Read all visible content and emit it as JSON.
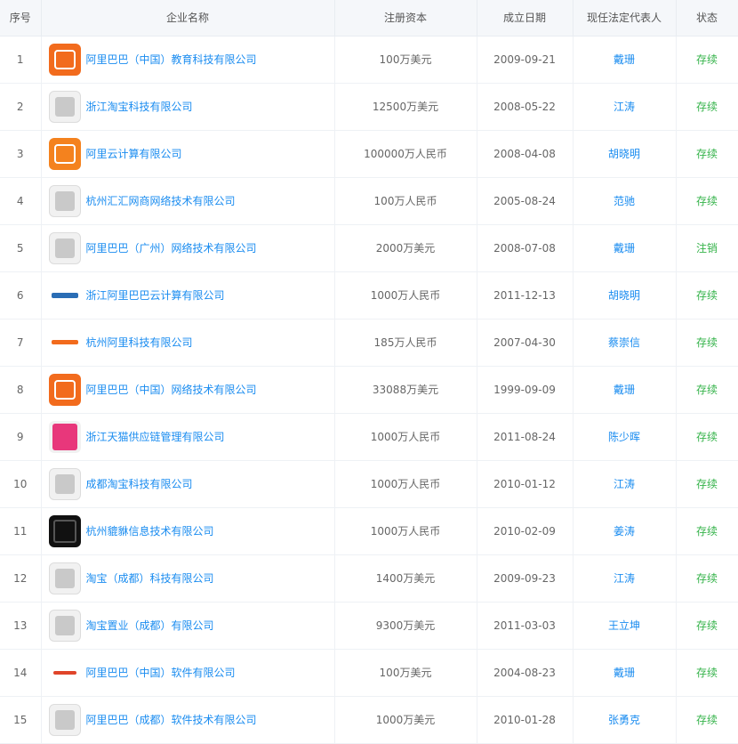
{
  "columns": {
    "index": "序号",
    "name": "企业名称",
    "capital": "注册资本",
    "date": "成立日期",
    "rep": "现任法定代表人",
    "status": "状态"
  },
  "rows": [
    {
      "index": "1",
      "logo": "orange",
      "name": "阿里巴巴（中国）教育科技有限公司",
      "capital": "100万美元",
      "date": "2009-09-21",
      "rep": "戴珊",
      "status": "存续"
    },
    {
      "index": "2",
      "logo": "grey",
      "name": "浙江淘宝科技有限公司",
      "capital": "12500万美元",
      "date": "2008-05-22",
      "rep": "江涛",
      "status": "存续"
    },
    {
      "index": "3",
      "logo": "orange2",
      "name": "阿里云计算有限公司",
      "capital": "100000万人民币",
      "date": "2008-04-08",
      "rep": "胡晓明",
      "status": "存续"
    },
    {
      "index": "4",
      "logo": "grey",
      "name": "杭州汇汇网商网络技术有限公司",
      "capital": "100万人民币",
      "date": "2005-08-24",
      "rep": "范驰",
      "status": "存续"
    },
    {
      "index": "5",
      "logo": "grey",
      "name": "阿里巴巴（广州）网络技术有限公司",
      "capital": "2000万美元",
      "date": "2008-07-08",
      "rep": "戴珊",
      "status": "注销"
    },
    {
      "index": "6",
      "logo": "blue-text",
      "name": "浙江阿里巴巴云计算有限公司",
      "capital": "1000万人民币",
      "date": "2011-12-13",
      "rep": "胡晓明",
      "status": "存续"
    },
    {
      "index": "7",
      "logo": "orange-text",
      "name": "杭州阿里科技有限公司",
      "capital": "185万人民币",
      "date": "2007-04-30",
      "rep": "蔡崇信",
      "status": "存续"
    },
    {
      "index": "8",
      "logo": "orange",
      "name": "阿里巴巴（中国）网络技术有限公司",
      "capital": "33088万美元",
      "date": "1999-09-09",
      "rep": "戴珊",
      "status": "存续"
    },
    {
      "index": "9",
      "logo": "pink",
      "name": "浙江天猫供应链管理有限公司",
      "capital": "1000万人民币",
      "date": "2011-08-24",
      "rep": "陈少晖",
      "status": "存续"
    },
    {
      "index": "10",
      "logo": "grey",
      "name": "成都淘宝科技有限公司",
      "capital": "1000万人民币",
      "date": "2010-01-12",
      "rep": "江涛",
      "status": "存续"
    },
    {
      "index": "11",
      "logo": "black",
      "name": "杭州貔貅信息技术有限公司",
      "capital": "1000万人民币",
      "date": "2010-02-09",
      "rep": "姜涛",
      "status": "存续"
    },
    {
      "index": "12",
      "logo": "grey",
      "name": "淘宝（成都）科技有限公司",
      "capital": "1400万美元",
      "date": "2009-09-23",
      "rep": "江涛",
      "status": "存续"
    },
    {
      "index": "13",
      "logo": "grey",
      "name": "淘宝置业（成都）有限公司",
      "capital": "9300万美元",
      "date": "2011-03-03",
      "rep": "王立坤",
      "status": "存续"
    },
    {
      "index": "14",
      "logo": "red-text",
      "name": "阿里巴巴（中国）软件有限公司",
      "capital": "100万美元",
      "date": "2004-08-23",
      "rep": "戴珊",
      "status": "存续"
    },
    {
      "index": "15",
      "logo": "grey",
      "name": "阿里巴巴（成都）软件技术有限公司",
      "capital": "1000万美元",
      "date": "2010-01-28",
      "rep": "张勇克",
      "status": "存续"
    }
  ],
  "colors": {
    "link": "#1a8cf0",
    "status_active": "#35b34a",
    "header_bg": "#f5f7fa"
  }
}
